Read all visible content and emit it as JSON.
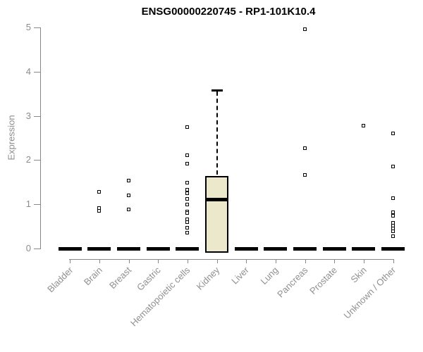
{
  "chart": {
    "title": "ENSG00000220745 - RP1-101K10.4",
    "ylabel": "Expression"
  },
  "chart_data": {
    "type": "boxplot",
    "title": "ENSG00000220745 - RP1-101K10.4",
    "xlabel": "",
    "ylabel": "Expression",
    "ylim": [
      0,
      5
    ],
    "yticks": [
      0,
      1,
      2,
      3,
      4,
      5
    ],
    "grid": false,
    "legend": "none",
    "categories": [
      {
        "label": "Bladder",
        "median": 0,
        "q1": 0,
        "q3": 0,
        "whisker_low": 0,
        "whisker_high": 0,
        "outliers": []
      },
      {
        "label": "Brain",
        "median": 0,
        "q1": 0,
        "q3": 0,
        "whisker_low": 0,
        "whisker_high": 0,
        "outliers": [
          1.27,
          0.91,
          0.84
        ]
      },
      {
        "label": "Breast",
        "median": 0,
        "q1": 0,
        "q3": 0,
        "whisker_low": 0,
        "whisker_high": 0,
        "outliers": [
          1.53,
          1.19,
          0.88
        ]
      },
      {
        "label": "Gastric",
        "median": 0,
        "q1": 0,
        "q3": 0,
        "whisker_low": 0,
        "whisker_high": 0,
        "outliers": []
      },
      {
        "label": "Hematopoietic cells",
        "median": 0,
        "q1": 0,
        "q3": 0,
        "whisker_low": 0,
        "whisker_high": 0,
        "outliers": [
          2.74,
          2.1,
          1.91,
          1.48,
          1.32,
          1.24,
          1.11,
          0.99,
          0.83,
          0.79,
          0.65,
          0.59,
          0.46,
          0.35
        ]
      },
      {
        "label": "Kidney",
        "median": 1.11,
        "q1": 0,
        "q3": 1.64,
        "whisker_low": 0,
        "whisker_high": 3.58,
        "outliers": []
      },
      {
        "label": "Liver",
        "median": 0,
        "q1": 0,
        "q3": 0,
        "whisker_low": 0,
        "whisker_high": 0,
        "outliers": []
      },
      {
        "label": "Lung",
        "median": 0,
        "q1": 0,
        "q3": 0,
        "whisker_low": 0,
        "whisker_high": 0,
        "outliers": []
      },
      {
        "label": "Pancreas",
        "median": 0,
        "q1": 0,
        "q3": 0,
        "whisker_low": 0,
        "whisker_high": 0,
        "outliers": [
          4.95,
          2.26,
          1.66
        ]
      },
      {
        "label": "Prostate",
        "median": 0,
        "q1": 0,
        "q3": 0,
        "whisker_low": 0,
        "whisker_high": 0,
        "outliers": []
      },
      {
        "label": "Skin",
        "median": 0,
        "q1": 0,
        "q3": 0,
        "whisker_low": 0,
        "whisker_high": 0,
        "outliers": [
          2.77
        ]
      },
      {
        "label": "Unknown / Other",
        "median": 0,
        "q1": 0,
        "q3": 0,
        "whisker_low": 0,
        "whisker_high": 0,
        "outliers": [
          2.6,
          1.85,
          1.13,
          0.81,
          0.73,
          0.57,
          0.51,
          0.45,
          0.38,
          0.27
        ]
      }
    ],
    "colors": {
      "box_fill": "#ece8cb",
      "box_border": "#000000",
      "median": "#000000",
      "whisker": "#000000",
      "outlier_border": "#000000",
      "outlier_fill": "#ffffff",
      "axis_line": "#888888",
      "tick_text": "#8c8c8c",
      "title_text": "#000000"
    }
  }
}
